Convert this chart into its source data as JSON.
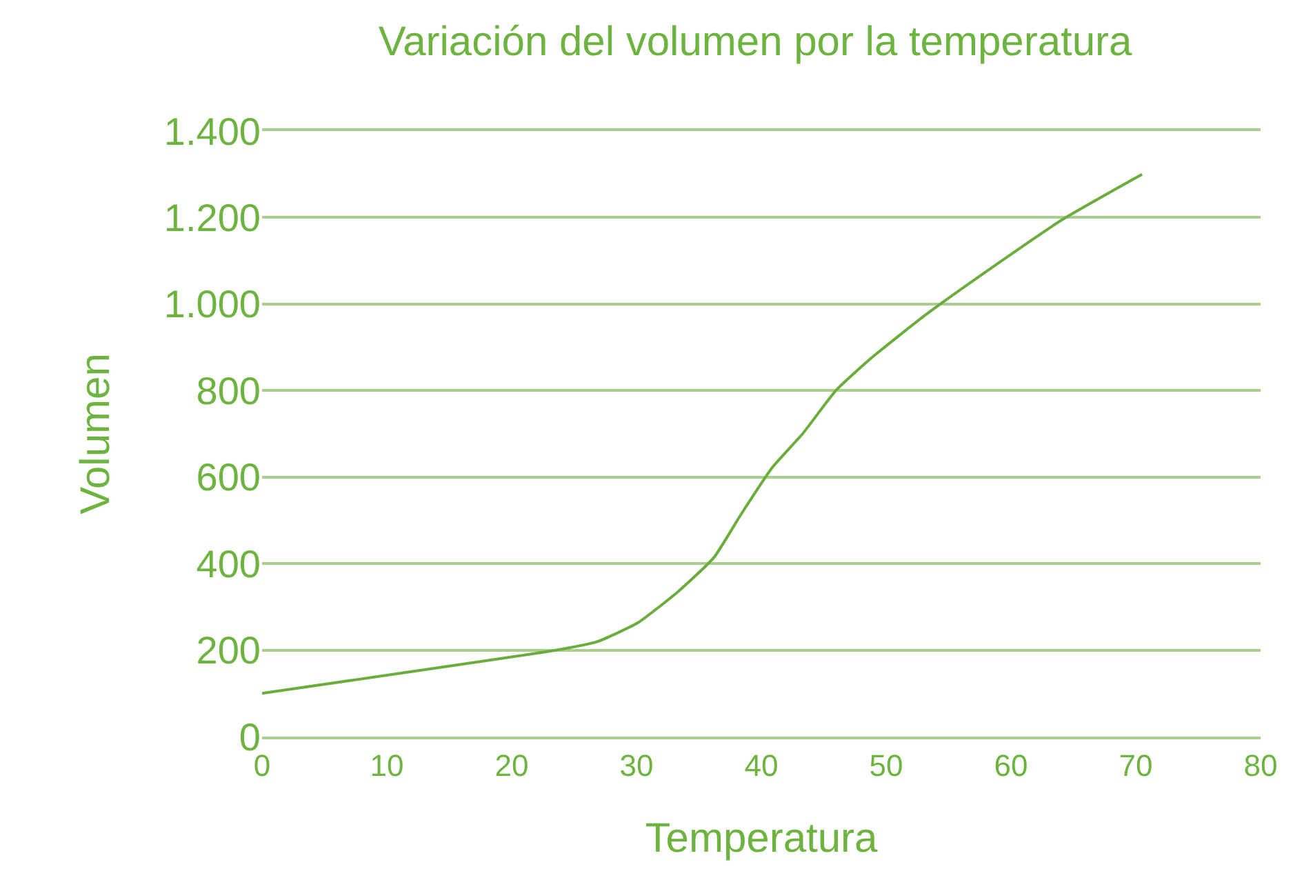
{
  "chart_data": {
    "type": "line",
    "title": "Variación del volumen por la temperatura",
    "xlabel": "Temperatura",
    "ylabel": "Volumen",
    "x": [
      0,
      10,
      20,
      23.6,
      26.8,
      30.1,
      33.4,
      36.2,
      38.4,
      40.9,
      43.3,
      46,
      48.8,
      53.2,
      58.6,
      64.1,
      70.5
    ],
    "series": [
      {
        "color": "#6aad3d",
        "values": [
          100,
          142,
          184,
          200,
          219,
          263,
          337,
          414,
          515,
          623,
          700,
          801,
          875,
          976,
          1087,
          1195,
          1300
        ]
      }
    ],
    "xlim": [
      0,
      80
    ],
    "xticks": [
      {
        "value": 0,
        "label": "0"
      },
      10,
      20,
      30,
      40,
      50,
      60,
      70,
      80
    ],
    "ylim": [
      0,
      1400
    ],
    "yticks": [
      0,
      200,
      400,
      600,
      800,
      {
        "value": 1000,
        "label": "1.000"
      },
      {
        "value": 1200,
        "label": "1.200"
      },
      {
        "value": 1400,
        "label": "1.400"
      }
    ],
    "grid": "y",
    "marker": "none",
    "line_style": "solid"
  }
}
